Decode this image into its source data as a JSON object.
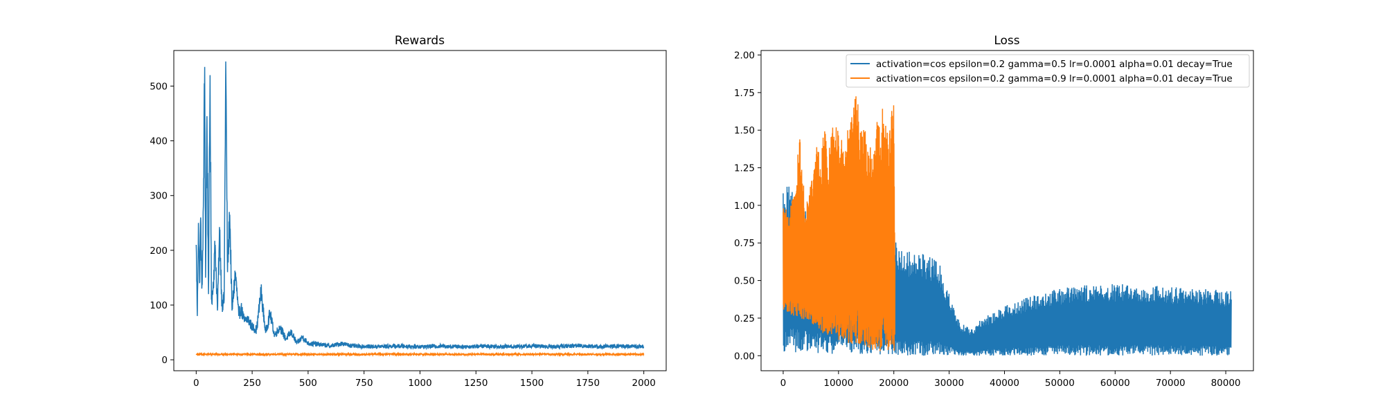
{
  "colors": {
    "series_blue": "#1f77b4",
    "series_orange": "#ff7f0e",
    "axes": "#000000",
    "background": "#ffffff"
  },
  "chart_data": [
    {
      "type": "line",
      "title": "Rewards",
      "xlabel": "",
      "ylabel": "",
      "xlim": [
        -100,
        2100
      ],
      "ylim": [
        -20,
        565
      ],
      "xticks": [
        0,
        250,
        500,
        750,
        1000,
        1250,
        1500,
        1750,
        2000
      ],
      "yticks": [
        0,
        100,
        200,
        300,
        400,
        500
      ],
      "grid": false,
      "legend": "none",
      "series": [
        {
          "color": "#1f77b4",
          "x": [
            0,
            5,
            10,
            15,
            20,
            25,
            30,
            38,
            42,
            48,
            55,
            62,
            68,
            75,
            85,
            95,
            105,
            115,
            125,
            132,
            140,
            150,
            160,
            175,
            190,
            200,
            215,
            230,
            250,
            270,
            290,
            310,
            330,
            350,
            375,
            400,
            425,
            450,
            475,
            500,
            550,
            600,
            650,
            700,
            800,
            900,
            1000,
            1100,
            1200,
            1300,
            1400,
            1500,
            1600,
            1700,
            1800,
            1900,
            2000
          ],
          "y": [
            210,
            80,
            250,
            140,
            260,
            130,
            200,
            535,
            150,
            445,
            120,
            520,
            110,
            130,
            210,
            90,
            235,
            100,
            110,
            545,
            160,
            265,
            90,
            160,
            80,
            95,
            70,
            75,
            60,
            55,
            125,
            50,
            85,
            45,
            60,
            38,
            50,
            30,
            42,
            30,
            28,
            25,
            30,
            25,
            24,
            25,
            24,
            25,
            24,
            25,
            24,
            25,
            24,
            26,
            24,
            25,
            24
          ]
        },
        {
          "color": "#ff7f0e",
          "x": [
            0,
            250,
            500,
            750,
            1000,
            1250,
            1500,
            1750,
            2000
          ],
          "y": [
            10,
            10,
            10,
            10,
            10,
            10,
            10,
            10,
            10
          ]
        }
      ]
    },
    {
      "type": "line",
      "title": "Loss",
      "xlabel": "",
      "ylabel": "",
      "xlim": [
        -4000,
        85000
      ],
      "ylim": [
        -0.1,
        2.03
      ],
      "xticks": [
        0,
        10000,
        20000,
        30000,
        40000,
        50000,
        60000,
        70000,
        80000
      ],
      "yticks": [
        0.0,
        0.25,
        0.5,
        0.75,
        1.0,
        1.25,
        1.5,
        1.75,
        2.0
      ],
      "ytick_labels": [
        "0.00",
        "0.25",
        "0.50",
        "0.75",
        "1.00",
        "1.25",
        "1.50",
        "1.75",
        "2.00"
      ],
      "grid": false,
      "legend": "top-right",
      "series": [
        {
          "name": "activation=cos epsilon=0.2 gamma=0.5 lr=0.0001 alpha=0.01 decay=True",
          "color": "#1f77b4",
          "envelope_x": [
            0,
            1000,
            2000,
            5000,
            10000,
            15000,
            20000,
            20500,
            22000,
            25000,
            28000,
            30000,
            32000,
            34000,
            36000,
            40000,
            45000,
            50000,
            55000,
            60000,
            65000,
            70000,
            75000,
            81000
          ],
          "envelope_top": [
            1.15,
            1.22,
            1.1,
            0.95,
            0.9,
            0.85,
            0.82,
            0.75,
            0.7,
            0.68,
            0.65,
            0.42,
            0.22,
            0.18,
            0.25,
            0.33,
            0.4,
            0.45,
            0.47,
            0.48,
            0.47,
            0.46,
            0.45,
            0.43
          ],
          "envelope_bottom": [
            0.02,
            0.02,
            0.02,
            0.02,
            0.01,
            0.01,
            0.0,
            0.0,
            0.0,
            0.0,
            0.0,
            0.0,
            0.0,
            0.0,
            0.0,
            0.0,
            0.0,
            0.0,
            0.0,
            0.0,
            0.0,
            0.0,
            0.0,
            0.0
          ]
        },
        {
          "name": "activation=cos epsilon=0.2 gamma=0.9 lr=0.0001 alpha=0.01 decay=True",
          "color": "#ff7f0e",
          "envelope_x": [
            0,
            1000,
            2000,
            3000,
            4000,
            5000,
            6000,
            7000,
            7500,
            8000,
            9000,
            10000,
            11000,
            12000,
            13000,
            14000,
            15000,
            16000,
            17000,
            18000,
            19000,
            20000,
            20200
          ],
          "envelope_top": [
            1.0,
            0.95,
            1.1,
            1.47,
            1.0,
            1.2,
            1.45,
            1.35,
            1.73,
            1.3,
            1.55,
            1.5,
            1.4,
            1.6,
            1.83,
            1.55,
            1.5,
            1.35,
            1.6,
            1.7,
            1.45,
            1.75,
            0.72
          ],
          "envelope_bottom": [
            0.3,
            0.28,
            0.26,
            0.25,
            0.23,
            0.2,
            0.18,
            0.1,
            0.15,
            0.14,
            0.12,
            0.1,
            0.09,
            0.08,
            0.07,
            0.06,
            0.05,
            0.04,
            0.03,
            0.03,
            0.02,
            0.02,
            0.02
          ]
        }
      ]
    }
  ]
}
